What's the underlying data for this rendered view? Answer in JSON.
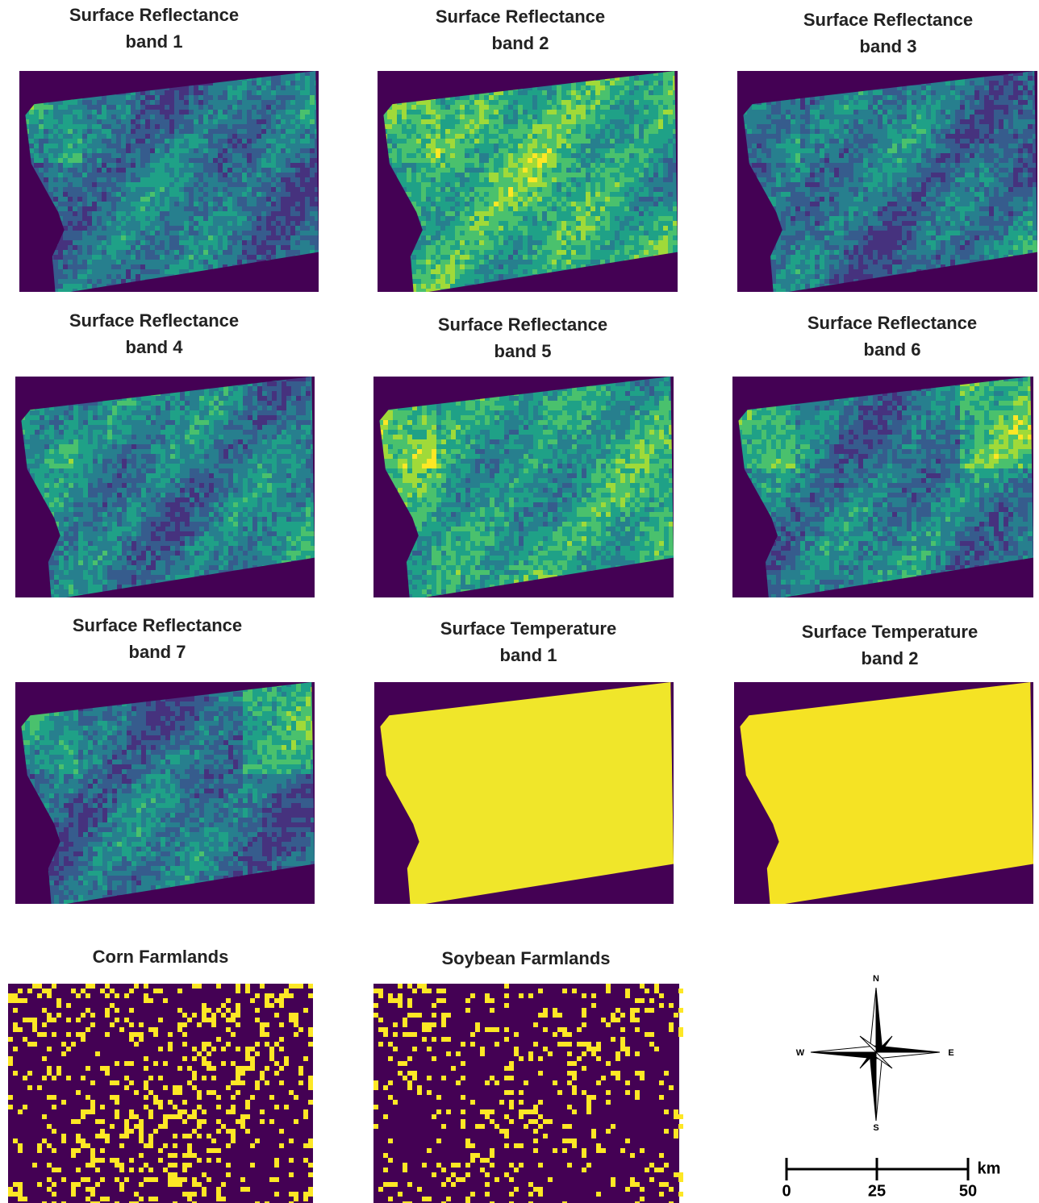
{
  "panels": [
    {
      "title": [
        "Surface Reflectance",
        "band 1"
      ]
    },
    {
      "title": [
        "Surface Reflectance",
        "band 2"
      ]
    },
    {
      "title": [
        "Surface Reflectance",
        "band 3"
      ]
    },
    {
      "title": [
        "Surface Reflectance",
        "band 4"
      ]
    },
    {
      "title": [
        "Surface Reflectance",
        "band 5"
      ]
    },
    {
      "title": [
        "Surface Reflectance",
        "band 6"
      ]
    },
    {
      "title": [
        "Surface Reflectance",
        "band 7"
      ]
    },
    {
      "title": [
        "Surface Temperature",
        "band 1"
      ]
    },
    {
      "title": [
        "Surface Temperature",
        "band 2"
      ]
    },
    {
      "title": [
        "Corn Farmlands"
      ]
    },
    {
      "title": [
        "Soybean Farmlands"
      ]
    }
  ],
  "compass": {
    "north": "N",
    "east": "E",
    "south": "S",
    "west": "W"
  },
  "scale_bar": {
    "ticks": [
      0,
      25,
      50
    ],
    "unit": "km"
  }
}
